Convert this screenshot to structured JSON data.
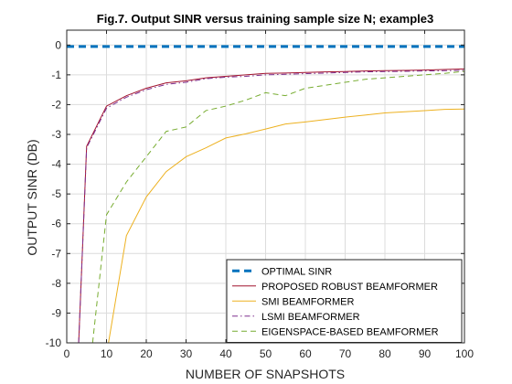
{
  "chart_data": {
    "type": "line",
    "title": "Fig.7. Output SINR versus training sample size N; example3",
    "xlabel": "NUMBER OF SNAPSHOTS",
    "ylabel": "OUTPUT SINR (DB)",
    "xlim": [
      0,
      100
    ],
    "ylim": [
      -10,
      0.5
    ],
    "xticks": [
      0,
      10,
      20,
      30,
      40,
      50,
      60,
      70,
      80,
      90,
      100
    ],
    "yticks": [
      -10,
      -9,
      -8,
      -7,
      -6,
      -5,
      -4,
      -3,
      -2,
      -1,
      0
    ],
    "grid": true,
    "legend_position": "bottom-right",
    "series": [
      {
        "name": "OPTIMAL SINR",
        "color": "#0072BD",
        "style": "dashed-thick",
        "x": [
          0,
          100
        ],
        "y": [
          -0.05,
          -0.05
        ]
      },
      {
        "name": "PROPOSED ROBUST BEAMFORMER",
        "color": "#A2142F",
        "style": "solid",
        "x": [
          3,
          5,
          10,
          15,
          20,
          25,
          30,
          35,
          40,
          45,
          50,
          55,
          60,
          65,
          70,
          75,
          80,
          85,
          90,
          95,
          100
        ],
        "y": [
          -10,
          -3.4,
          -2.05,
          -1.7,
          -1.45,
          -1.27,
          -1.2,
          -1.1,
          -1.05,
          -1.0,
          -0.95,
          -0.94,
          -0.92,
          -0.9,
          -0.89,
          -0.87,
          -0.86,
          -0.85,
          -0.84,
          -0.82,
          -0.8
        ]
      },
      {
        "name": "SMI BEAMFORMER",
        "color": "#EDB120",
        "style": "solid",
        "x": [
          10.5,
          15,
          20,
          25,
          30,
          35,
          40,
          45,
          50,
          55,
          60,
          65,
          70,
          75,
          80,
          85,
          90,
          95,
          100
        ],
        "y": [
          -10,
          -6.4,
          -5.1,
          -4.25,
          -3.75,
          -3.45,
          -3.12,
          -2.98,
          -2.82,
          -2.65,
          -2.58,
          -2.5,
          -2.42,
          -2.35,
          -2.28,
          -2.24,
          -2.2,
          -2.16,
          -2.15
        ]
      },
      {
        "name": "LSMI BEAMFORMER",
        "color": "#7E2F8E",
        "style": "dashdot",
        "x": [
          3,
          5,
          10,
          15,
          20,
          25,
          30,
          35,
          40,
          45,
          50,
          55,
          60,
          65,
          70,
          75,
          80,
          85,
          90,
          95,
          100
        ],
        "y": [
          -10,
          -3.45,
          -2.12,
          -1.75,
          -1.5,
          -1.32,
          -1.25,
          -1.13,
          -1.08,
          -1.05,
          -1.0,
          -0.98,
          -0.96,
          -0.94,
          -0.92,
          -0.9,
          -0.89,
          -0.88,
          -0.87,
          -0.86,
          -0.85
        ]
      },
      {
        "name": "EIGENSPACE-BASED BEAMFORMER",
        "color": "#77AC30",
        "style": "dashed",
        "x": [
          6.5,
          10,
          15,
          20,
          25,
          30,
          35,
          40,
          45,
          50,
          55,
          60,
          65,
          70,
          75,
          80,
          85,
          90,
          95,
          100
        ],
        "y": [
          -10,
          -5.7,
          -4.6,
          -3.75,
          -2.9,
          -2.75,
          -2.2,
          -2.05,
          -1.85,
          -1.6,
          -1.7,
          -1.45,
          -1.35,
          -1.25,
          -1.15,
          -1.1,
          -1.05,
          -1.0,
          -0.95,
          -0.88
        ]
      }
    ]
  }
}
